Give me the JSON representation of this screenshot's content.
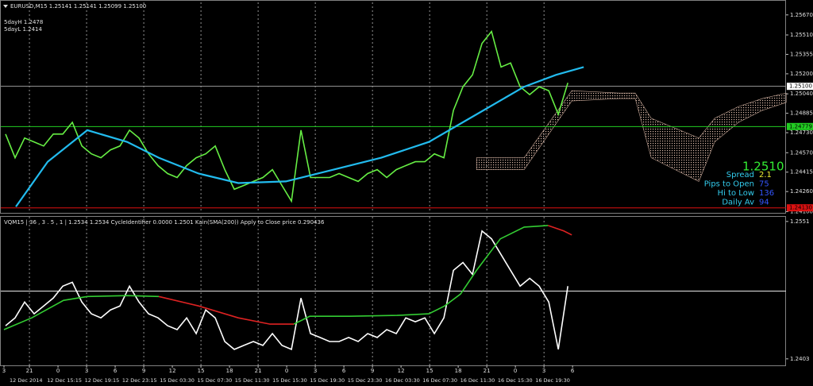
{
  "chart_data": [
    {
      "type": "line",
      "title": "EURUSD,M15 1.25141 1.25141 1.25099 1.25100",
      "annotations": [
        "5dayH 1.2478",
        "5dayL 1.2414"
      ],
      "info": {
        "price": "1.2510",
        "rows": [
          [
            "Spread",
            "2.1"
          ],
          [
            "Pips to Open",
            "75"
          ],
          [
            "Hi to Low",
            "136"
          ],
          [
            "Daily Av",
            "94"
          ]
        ]
      },
      "xlim": [
        -2.67,
        79.4
      ],
      "ylim": [
        1.2409,
        1.2577
      ],
      "yticks": [
        {
          "value": 1.2567,
          "label": "1.25670"
        },
        {
          "value": 1.2551,
          "label": "1.25510"
        },
        {
          "value": 1.25355,
          "label": "1.25355"
        },
        {
          "value": 1.252,
          "label": "1.25200"
        },
        {
          "value": 1.2504,
          "label": "1.25040"
        },
        {
          "value": 1.24885,
          "label": "1.24885"
        },
        {
          "value": 1.2473,
          "label": "1.24730"
        },
        {
          "value": 1.2457,
          "label": "1.24570"
        },
        {
          "value": 1.24415,
          "label": "1.24415"
        },
        {
          "value": 1.2426,
          "label": "1.24260"
        },
        {
          "value": 1.241,
          "label": "1.24100"
        }
      ],
      "hlines": [
        {
          "value": 1.251,
          "label": "1.25100",
          "color": "#9a9a9a"
        },
        {
          "value": 1.24779,
          "label": "1.24779",
          "color": "#22cc22"
        },
        {
          "value": 1.2413,
          "label": "1.24130",
          "color": "#dd1111"
        }
      ],
      "series": [
        {
          "color": "#66ee44",
          "x": [
            -2.5,
            -1.5,
            -0.5,
            0.5,
            1.5,
            2.5,
            3.5,
            4.5,
            5.5,
            6.5,
            7.5,
            8.5,
            9.5,
            10.5,
            11.5,
            12.5,
            13.5,
            14.5,
            15.5,
            16.5,
            17.5,
            18.5,
            19.5,
            20.5,
            21.5,
            22.5,
            23.5,
            24.5,
            25.5,
            26.5,
            27.5,
            28.5,
            29.5,
            30.5,
            31.5,
            32.5,
            33.5,
            34.5,
            35.5,
            36.5,
            37.5,
            38.5,
            39.5,
            40.5,
            41.5,
            42.5,
            43.5,
            44.5,
            45.5,
            46.5,
            47.5,
            48.5,
            49.5,
            50.5,
            51.5,
            52.5,
            53.5,
            54.5,
            55.5,
            56.5
          ],
          "values": [
            1.24719,
            1.2453,
            1.24687,
            1.24656,
            1.24624,
            1.24719,
            1.24719,
            1.24813,
            1.24624,
            1.24561,
            1.2453,
            1.24593,
            1.24624,
            1.2475,
            1.24687,
            1.24561,
            1.24467,
            1.24404,
            1.24372,
            1.24467,
            1.2453,
            1.24561,
            1.24624,
            1.24435,
            1.24278,
            1.24309,
            1.24341,
            1.24372,
            1.24435,
            1.24309,
            1.24183,
            1.2475,
            1.24372,
            1.24372,
            1.24372,
            1.24404,
            1.24372,
            1.24341,
            1.24404,
            1.24435,
            1.24372,
            1.24435,
            1.24467,
            1.24498,
            1.24498,
            1.24561,
            1.2453,
            1.24908,
            1.25097,
            1.25191,
            1.25443,
            1.25538,
            1.25254,
            1.25286,
            1.25097,
            1.25034,
            1.25097,
            1.25065,
            1.24876,
            1.25128
          ]
        },
        {
          "color": "#22bbee",
          "x": [
            -1.42,
            1.92,
            6.08,
            10.25,
            13.58,
            17.75,
            21.92,
            26.92,
            31.92,
            36.92,
            41.92,
            46.92,
            51.92,
            55.25,
            58.17
          ],
          "values": [
            1.24139,
            1.24498,
            1.2475,
            1.24656,
            1.2453,
            1.24404,
            1.24328,
            1.24341,
            1.24435,
            1.2453,
            1.24656,
            1.24876,
            1.25097,
            1.25191,
            1.25254
          ]
        }
      ],
      "cloud": {
        "color": "#c8a898",
        "x": [
          46.92,
          51.92,
          56.92,
          61.92,
          63.58,
          65.25,
          70.25,
          71.92,
          74.42,
          76.92,
          79.42
        ],
        "upper": [
          1.2453,
          1.2453,
          1.25065,
          1.25046,
          1.25046,
          1.24845,
          1.24687,
          1.24845,
          1.24939,
          1.25002,
          1.25046
        ],
        "lower": [
          1.24435,
          1.24435,
          1.24983,
          1.25002,
          1.25002,
          1.2453,
          1.24341,
          1.24656,
          1.24813,
          1.24908,
          1.24971
        ]
      }
    },
    {
      "type": "line",
      "title": "VQM15 | 36 , 3 . 5 , 1 | 1.2534 1.2534 CycleIdentifier 0.0000 1.2501 Kain(SMA(200)) Apply to Close price 0.290436",
      "xlim": [
        -2.67,
        79.4
      ],
      "ylim": [
        1.2396,
        1.2556
      ],
      "yticks": [
        1.2551,
        1.2403
      ],
      "hlines": [
        {
          "value": 1.2476,
          "color": "#e8e8e8"
        }
      ],
      "xticks": [
        {
          "value": -2.67,
          "label": "3"
        },
        {
          "value": 0,
          "label": "21"
        },
        {
          "value": 3,
          "label": "0"
        },
        {
          "value": 6,
          "label": "3"
        },
        {
          "value": 9,
          "label": "6"
        },
        {
          "value": 12,
          "label": "9"
        },
        {
          "value": 15,
          "label": "12"
        },
        {
          "value": 18,
          "label": "15"
        },
        {
          "value": 21,
          "label": "18"
        },
        {
          "value": 24,
          "label": "21"
        },
        {
          "value": 27,
          "label": "0"
        },
        {
          "value": 30,
          "label": "3"
        },
        {
          "value": 33,
          "label": "6"
        },
        {
          "value": 36,
          "label": "9"
        },
        {
          "value": 39,
          "label": "12"
        },
        {
          "value": 42,
          "label": "15"
        },
        {
          "value": 45,
          "label": "18"
        },
        {
          "value": 48,
          "label": "21"
        },
        {
          "value": 51,
          "label": "0"
        },
        {
          "value": 54,
          "label": "3"
        },
        {
          "value": 57,
          "label": "6"
        }
      ],
      "date_labels": [
        "12 Dec 2014",
        "12 Dec 15:15",
        "12 Dec 19:15",
        "12 Dec 23:15",
        "15 Dec 03:30",
        "15 Dec 07:30",
        "15 Dec 11:30",
        "15 Dec 15:30",
        "15 Dec 19:30",
        "15 Dec 23:30",
        "16 Dec 03:30",
        "16 Dec 07:30",
        "16 Dec 11:30",
        "16 Dec 15:30",
        "16 Dec 19:30"
      ],
      "series": [
        {
          "color": "#ffffff",
          "x": [
            -2.5,
            -1.5,
            -0.5,
            0.5,
            1.5,
            2.5,
            3.5,
            4.5,
            5.5,
            6.5,
            7.5,
            8.5,
            9.5,
            10.5,
            11.5,
            12.5,
            13.5,
            14.5,
            15.5,
            16.5,
            17.5,
            18.5,
            19.5,
            20.5,
            21.5,
            22.5,
            23.5,
            24.5,
            25.5,
            26.5,
            27.5,
            28.5,
            29.5,
            30.5,
            31.5,
            32.5,
            33.5,
            34.5,
            35.5,
            36.5,
            37.5,
            38.5,
            39.5,
            40.5,
            41.5,
            42.5,
            43.5,
            44.5,
            45.5,
            46.5,
            47.5,
            48.5,
            49.5,
            50.5,
            51.5,
            52.5,
            53.5,
            54.5,
            55.5,
            56.5
          ],
          "values": [
            1.24387,
            1.24472,
            1.24642,
            1.24515,
            1.246,
            1.24685,
            1.24813,
            1.24855,
            1.24642,
            1.24515,
            1.24472,
            1.24557,
            1.246,
            1.24813,
            1.24642,
            1.24515,
            1.24472,
            1.24387,
            1.24345,
            1.24472,
            1.24302,
            1.24557,
            1.24472,
            1.24217,
            1.24132,
            1.24175,
            1.24217,
            1.24175,
            1.24302,
            1.24175,
            1.24132,
            1.24685,
            1.24302,
            1.2426,
            1.24217,
            1.24217,
            1.2426,
            1.24217,
            1.24302,
            1.2426,
            1.24345,
            1.24302,
            1.24472,
            1.2443,
            1.24472,
            1.24302,
            1.24472,
            1.24983,
            1.25068,
            1.2494,
            1.25408,
            1.25323,
            1.25153,
            1.24983,
            1.24813,
            1.24898,
            1.24813,
            1.24642,
            1.24132,
            1.24813
          ]
        },
        {
          "color": "#33cc33",
          "x": [
            -2.67,
            0.25,
            3.58,
            6.08,
            10.25,
            13.58,
            17.75,
            21.92,
            25.25,
            27.75,
            29.42,
            33.58,
            38.58,
            41.92,
            43.58,
            45.25,
            46.92,
            49.42,
            51.92,
            54.42,
            56.08,
            56.92
          ],
          "values": [
            1.24345,
            1.24472,
            1.2466,
            1.24702,
            1.24711,
            1.24702,
            null,
            null,
            null,
            1.24404,
            1.24489,
            1.24489,
            1.24498,
            1.24515,
            1.246,
            1.24728,
            1.24983,
            1.25323,
            1.2545,
            1.25467,
            null,
            null
          ]
        },
        {
          "color": "#dd2222",
          "x": [
            -2.67,
            0.25,
            3.58,
            6.08,
            10.25,
            13.58,
            17.75,
            21.92,
            25.25,
            27.75,
            29.42,
            33.58,
            38.58,
            41.92,
            43.58,
            45.25,
            46.92,
            49.42,
            51.92,
            54.42,
            56.08,
            56.92
          ],
          "values": [
            null,
            null,
            null,
            null,
            null,
            1.24702,
            1.246,
            1.24472,
            1.24404,
            1.24404,
            null,
            null,
            null,
            null,
            null,
            null,
            null,
            null,
            null,
            1.25467,
            1.25408,
            1.25365
          ]
        }
      ]
    }
  ]
}
